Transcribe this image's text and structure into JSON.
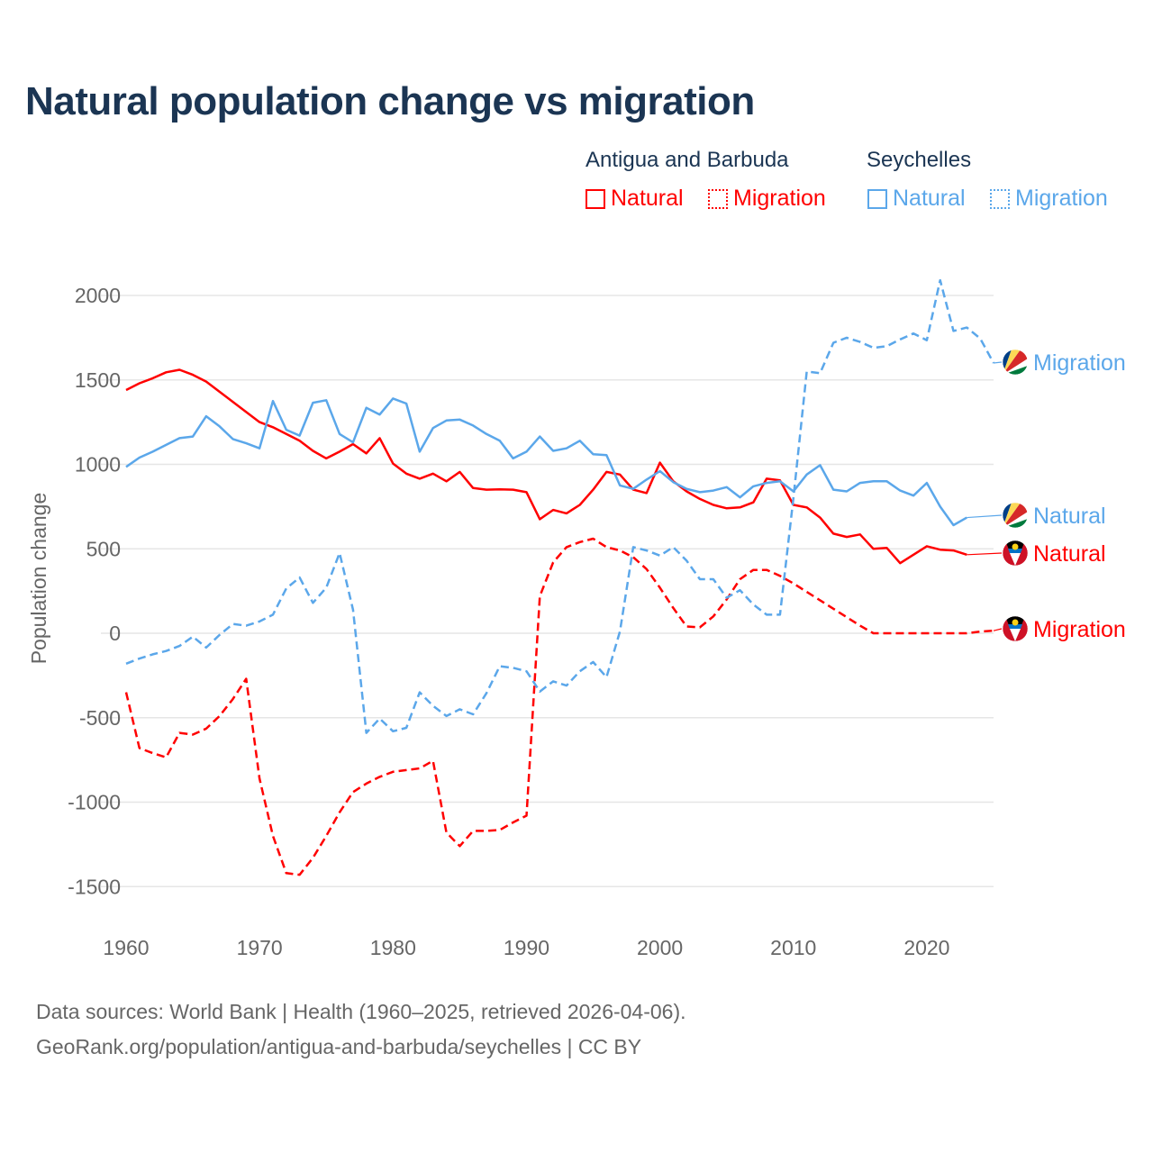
{
  "chart_data": {
    "type": "line",
    "title": "Natural population change vs migration",
    "xlabel": "",
    "ylabel": "Population change",
    "xlim": [
      1960,
      2025
    ],
    "ylim": [
      -1600,
      2100
    ],
    "yticks": [
      2000,
      1500,
      1000,
      500,
      0,
      -500,
      -1000,
      -1500
    ],
    "xticks": [
      1960,
      1970,
      1980,
      1990,
      2000,
      2010,
      2020
    ],
    "grid": true,
    "legend_placement": "top-right",
    "legend_groups": [
      {
        "country": "Antigua and Barbuda",
        "items": [
          "Natural",
          "Migration"
        ]
      },
      {
        "country": "Seychelles",
        "items": [
          "Natural",
          "Migration"
        ]
      }
    ],
    "x_start": 1960,
    "series": [
      {
        "name": "Antigua and Barbuda Natural",
        "label": "Natural",
        "color": "#ff0000",
        "dashed": false,
        "values": [
          1440,
          1480,
          1510,
          1545,
          1560,
          1530,
          1490,
          1430,
          1370,
          1310,
          1250,
          1220,
          1180,
          1140,
          1080,
          1035,
          1075,
          1120,
          1065,
          1155,
          1005,
          945,
          915,
          945,
          900,
          955,
          860,
          850,
          852,
          850,
          835,
          675,
          730,
          710,
          760,
          850,
          955,
          940,
          850,
          830,
          1010,
          900,
          840,
          795,
          760,
          740,
          745,
          775,
          915,
          905,
          760,
          745,
          685,
          590,
          570,
          585,
          500,
          505,
          415,
          465,
          515,
          495,
          490,
          465
        ]
      },
      {
        "name": "Antigua and Barbuda Migration",
        "label": "Migration",
        "color": "#ff0000",
        "dashed": true,
        "values": [
          -350,
          -680,
          -710,
          -735,
          -590,
          -600,
          -565,
          -490,
          -390,
          -270,
          -860,
          -1200,
          -1420,
          -1430,
          -1330,
          -1200,
          -1060,
          -940,
          -890,
          -850,
          -820,
          -810,
          -800,
          -755,
          -1180,
          -1260,
          -1170,
          -1170,
          -1165,
          -1120,
          -1080,
          220,
          420,
          510,
          540,
          560,
          510,
          490,
          450,
          380,
          270,
          150,
          40,
          35,
          100,
          200,
          320,
          375,
          375,
          340,
          295,
          245,
          195,
          145,
          95,
          45,
          0,
          0,
          0,
          0,
          0,
          0,
          0,
          0,
          10,
          15
        ]
      },
      {
        "name": "Seychelles Natural",
        "label": "Natural",
        "color": "#5ba7ea",
        "dashed": false,
        "values": [
          985,
          1040,
          1075,
          1115,
          1155,
          1165,
          1285,
          1225,
          1150,
          1125,
          1095,
          1375,
          1205,
          1170,
          1365,
          1380,
          1180,
          1130,
          1335,
          1295,
          1390,
          1360,
          1075,
          1215,
          1260,
          1265,
          1230,
          1180,
          1140,
          1035,
          1075,
          1165,
          1080,
          1095,
          1140,
          1060,
          1055,
          875,
          855,
          910,
          960,
          895,
          855,
          835,
          845,
          865,
          805,
          870,
          890,
          900,
          840,
          940,
          995,
          850,
          840,
          890,
          900,
          900,
          845,
          815,
          890,
          750,
          640,
          685
        ]
      },
      {
        "name": "Seychelles Migration",
        "label": "Migration",
        "color": "#5ba7ea",
        "dashed": true,
        "values": [
          -180,
          -150,
          -125,
          -105,
          -75,
          -20,
          -85,
          -10,
          55,
          45,
          70,
          110,
          265,
          330,
          180,
          270,
          475,
          140,
          -590,
          -505,
          -580,
          -560,
          -350,
          -430,
          -490,
          -450,
          -480,
          -355,
          -195,
          -205,
          -225,
          -345,
          -285,
          -310,
          -225,
          -170,
          -260,
          10,
          510,
          490,
          460,
          510,
          430,
          320,
          320,
          210,
          255,
          170,
          110,
          110,
          800,
          1550,
          1540,
          1720,
          1750,
          1725,
          1690,
          1700,
          1740,
          1775,
          1735,
          2090,
          1790,
          1810,
          1745,
          1600
        ]
      }
    ]
  },
  "end_labels": [
    {
      "text": "Migration",
      "series": 3,
      "flag": "seychelles"
    },
    {
      "text": "Natural",
      "series": 2,
      "flag": "seychelles"
    },
    {
      "text": "Natural",
      "series": 0,
      "flag": "antigua"
    },
    {
      "text": "Migration",
      "series": 1,
      "flag": "antigua"
    }
  ],
  "footer": {
    "line1": "Data sources: World Bank | Health (1960–2025, retrieved 2026-04-06).",
    "line2": "GeoRank.org/population/antigua-and-barbuda/seychelles | CC BY"
  }
}
